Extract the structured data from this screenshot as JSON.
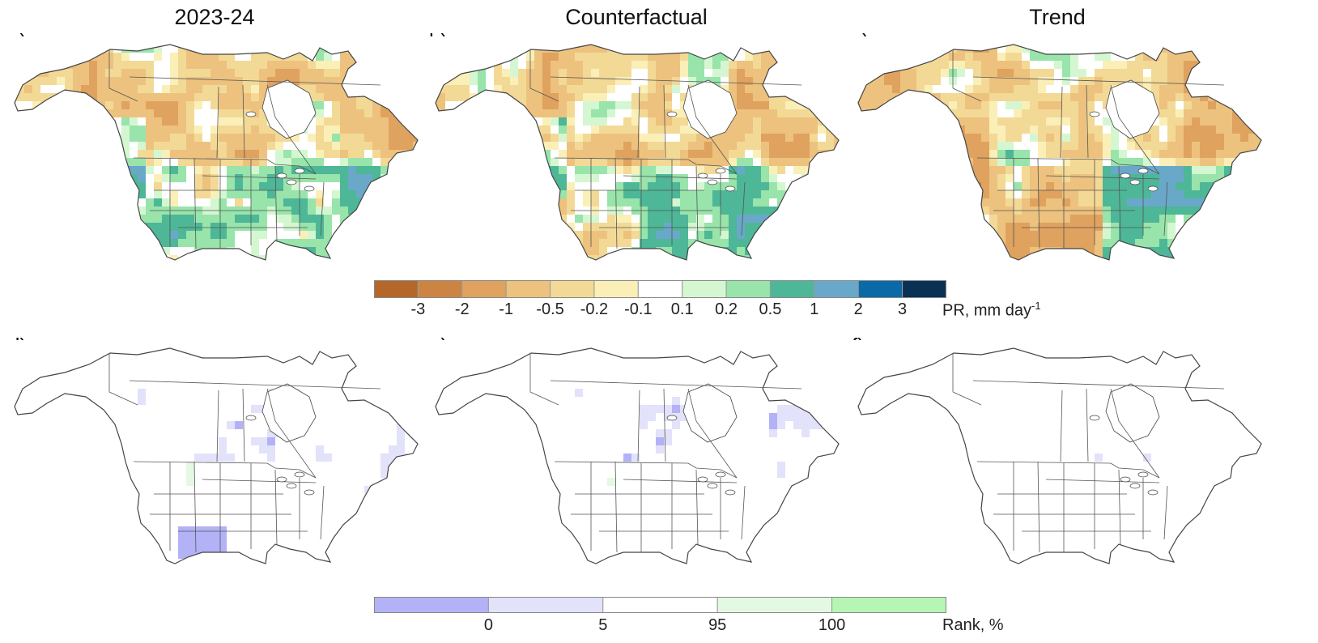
{
  "columns": [
    "2023-24",
    "Counterfactual",
    "Trend"
  ],
  "panels": [
    {
      "label": "a)",
      "kind": "precip",
      "variant": "obs"
    },
    {
      "label": "b)",
      "kind": "precip",
      "variant": "cf"
    },
    {
      "label": "c)",
      "kind": "precip",
      "variant": "trend"
    },
    {
      "label": "d)",
      "kind": "rank",
      "variant": "obs"
    },
    {
      "label": "e)",
      "kind": "rank",
      "variant": "cf"
    },
    {
      "label": "f)",
      "kind": "rank",
      "variant": "trend"
    }
  ],
  "precip_colorbar": {
    "colors": [
      "#b5672a",
      "#cd8443",
      "#dfa25f",
      "#edc27e",
      "#f3d996",
      "#fbefb8",
      "#ffffff",
      "#d4f7d1",
      "#98e4ab",
      "#4db797",
      "#6aa8c9",
      "#0a6aa8",
      "#093154"
    ],
    "ticks": [
      "-3",
      "-2",
      "-1",
      "-0.5",
      "-0.2",
      "-0.1",
      "0.1",
      "0.2",
      "0.5",
      "1",
      "2",
      "3"
    ],
    "unit_text": "PR, mm day",
    "unit_sup": "-1"
  },
  "rank_colorbar": {
    "colors": [
      "#b3b2f6",
      "#e2e2fb",
      "#ffffff",
      "#e4f9e2",
      "#b6f5b4"
    ],
    "ticks": [
      "0",
      "5",
      "95",
      "100"
    ],
    "unit_text": "Rank, %"
  }
}
